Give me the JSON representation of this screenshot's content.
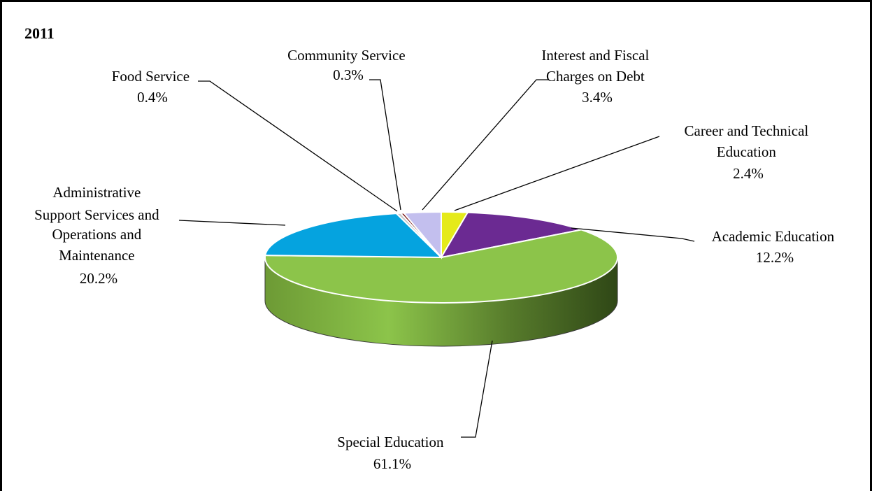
{
  "chart_data": {
    "type": "pie",
    "title": "2011",
    "style": "3d",
    "start_at": "12 o'clock, clockwise",
    "slices": [
      {
        "label": "Career and Technical Education",
        "value": 2.4,
        "value_label": "2.4%",
        "color": "#e5ea1a"
      },
      {
        "label": "Academic Education",
        "value": 12.2,
        "value_label": "12.2%",
        "color": "#6b2a92"
      },
      {
        "label": "Special Education",
        "value": 61.1,
        "value_label": "61.1%",
        "color": "#8cc44a"
      },
      {
        "label": "Administrative Support Services and Operations and Maintenance",
        "value": 20.2,
        "value_label": "20.2%",
        "color": "#05a3df"
      },
      {
        "label": "Food Service",
        "value": 0.4,
        "value_label": "0.4%",
        "color": "#c8c8c8"
      },
      {
        "label": "Community Service",
        "value": 0.3,
        "value_label": "0.3%",
        "color": "#7a1a1a"
      },
      {
        "label": "Interest and Fiscal Charges on Debt",
        "value": 3.4,
        "value_label": "3.4%",
        "color": "#c3bfee"
      }
    ]
  }
}
